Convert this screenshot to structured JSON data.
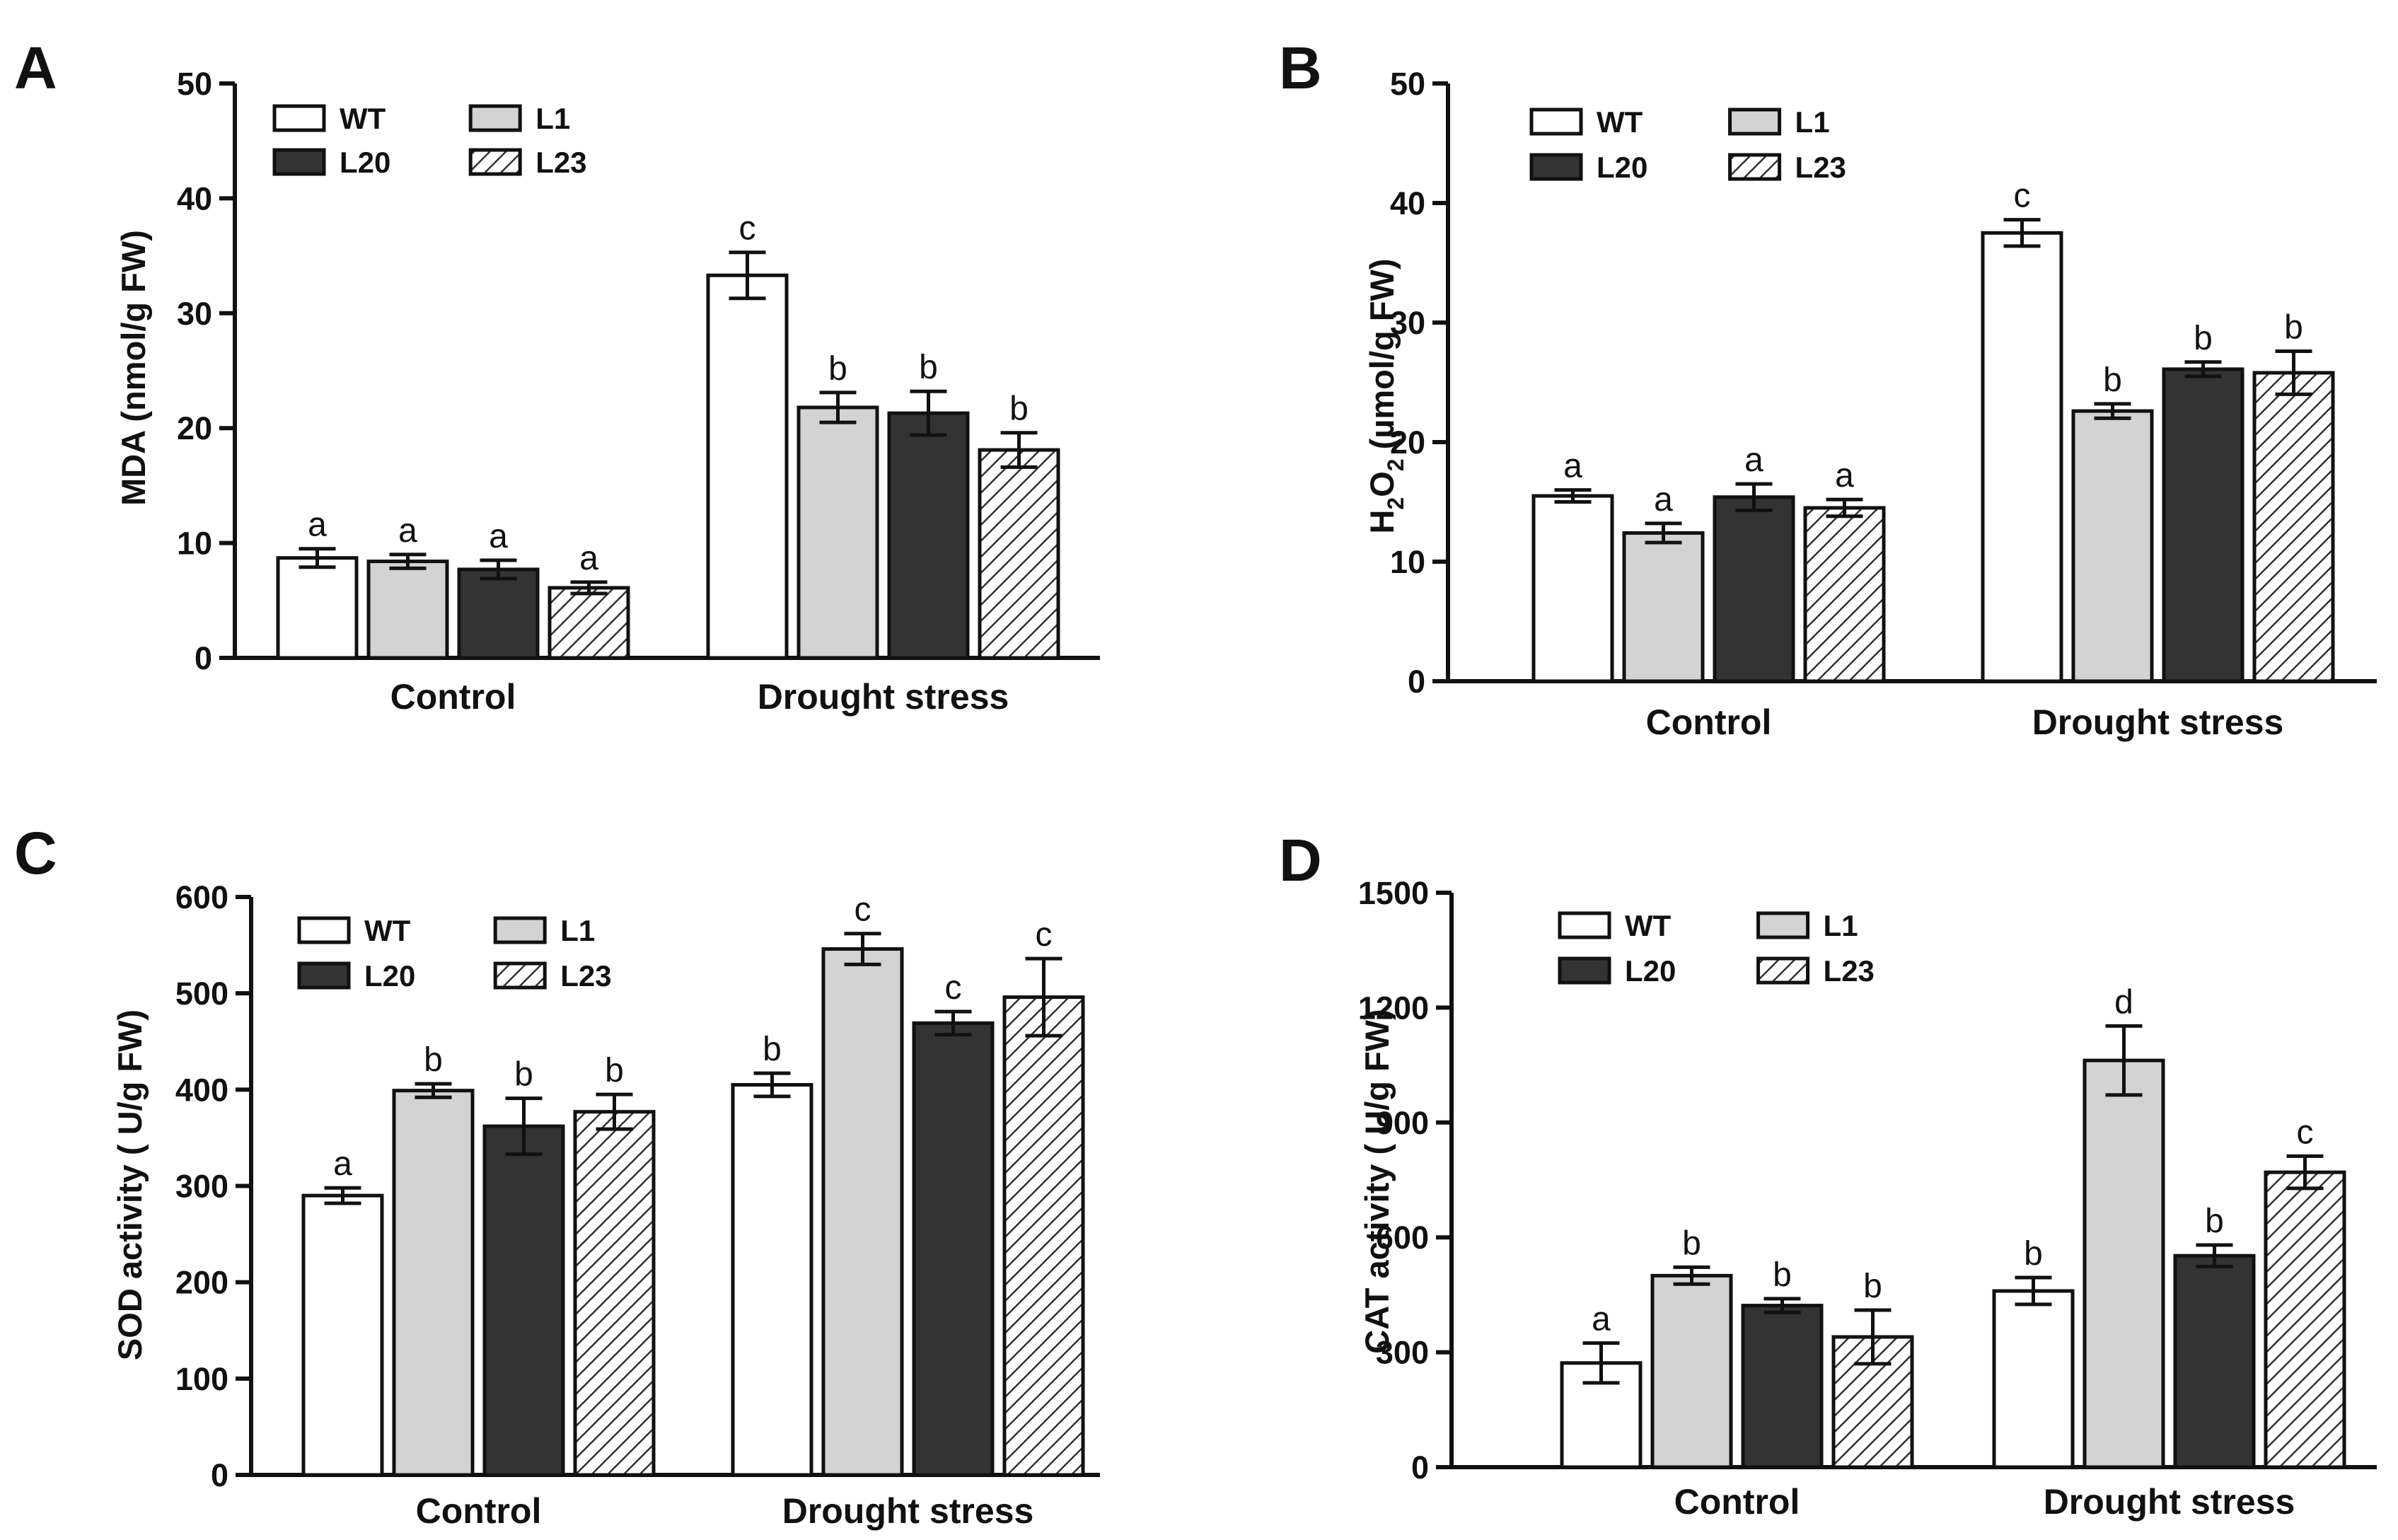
{
  "chart_data": [
    {
      "type": "bar",
      "panel": "A",
      "ylabel": "MDA (nmol/g FW)",
      "ylim": [
        0,
        50
      ],
      "yticks": [
        0,
        10,
        20,
        30,
        40,
        50
      ],
      "categories": [
        "Control",
        "Drought stress"
      ],
      "series": [
        {
          "name": "WT",
          "fill": "white",
          "values": [
            8.7,
            33.3
          ],
          "errors": [
            0.8,
            2.0
          ],
          "letters": [
            "a",
            "c"
          ]
        },
        {
          "name": "L1",
          "fill": "light",
          "values": [
            8.4,
            21.8
          ],
          "errors": [
            0.6,
            1.3
          ],
          "letters": [
            "a",
            "b"
          ]
        },
        {
          "name": "L20",
          "fill": "dark",
          "values": [
            7.7,
            21.3
          ],
          "errors": [
            0.8,
            1.9
          ],
          "letters": [
            "a",
            "b"
          ]
        },
        {
          "name": "L23",
          "fill": "hatch",
          "values": [
            6.1,
            18.1
          ],
          "errors": [
            0.5,
            1.5
          ],
          "letters": [
            "a",
            "b"
          ]
        }
      ]
    },
    {
      "type": "bar",
      "panel": "B",
      "ylabel": "H2O2 (µmol/g FW)",
      "ylabel_parts": {
        "pre": "H",
        "sub1": "2",
        "mid": "O",
        "sub2": "2",
        "post": " (µmol/g FW)"
      },
      "ylim": [
        0,
        50
      ],
      "yticks": [
        0,
        10,
        20,
        30,
        40,
        50
      ],
      "categories": [
        "Control",
        "Drought stress"
      ],
      "series": [
        {
          "name": "WT",
          "fill": "white",
          "values": [
            15.5,
            37.5
          ],
          "errors": [
            0.5,
            1.1
          ],
          "letters": [
            "a",
            "c"
          ]
        },
        {
          "name": "L1",
          "fill": "light",
          "values": [
            12.4,
            22.6
          ],
          "errors": [
            0.8,
            0.6
          ],
          "letters": [
            "a",
            "b"
          ]
        },
        {
          "name": "L20",
          "fill": "dark",
          "values": [
            15.4,
            26.1
          ],
          "errors": [
            1.1,
            0.6
          ],
          "letters": [
            "a",
            "b"
          ]
        },
        {
          "name": "L23",
          "fill": "hatch",
          "values": [
            14.5,
            25.8
          ],
          "errors": [
            0.7,
            1.8
          ],
          "letters": [
            "a",
            "b"
          ]
        }
      ]
    },
    {
      "type": "bar",
      "panel": "C",
      "ylabel": "SOD activity ( U/g FW)",
      "ylim": [
        0,
        600
      ],
      "yticks": [
        0,
        100,
        200,
        300,
        400,
        500,
        600
      ],
      "categories": [
        "Control",
        "Drought stress"
      ],
      "series": [
        {
          "name": "WT",
          "fill": "white",
          "values": [
            290,
            405
          ],
          "errors": [
            8,
            12
          ],
          "letters": [
            "a",
            "b"
          ]
        },
        {
          "name": "L1",
          "fill": "light",
          "values": [
            399,
            546
          ],
          "errors": [
            7,
            16
          ],
          "letters": [
            "b",
            "c"
          ]
        },
        {
          "name": "L20",
          "fill": "dark",
          "values": [
            362,
            469
          ],
          "errors": [
            29,
            12
          ],
          "letters": [
            "b",
            "c"
          ]
        },
        {
          "name": "L23",
          "fill": "hatch",
          "values": [
            377,
            496
          ],
          "errors": [
            18,
            40
          ],
          "letters": [
            "b",
            "c"
          ]
        }
      ]
    },
    {
      "type": "bar",
      "panel": "D",
      "ylabel": "CAT activity ( U/g FW)",
      "ylim": [
        0,
        1500
      ],
      "yticks": [
        0,
        300,
        600,
        900,
        1200,
        1500
      ],
      "categories": [
        "Control",
        "Drought stress"
      ],
      "series": [
        {
          "name": "WT",
          "fill": "white",
          "values": [
            272,
            460
          ],
          "errors": [
            52,
            35
          ],
          "letters": [
            "a",
            "b"
          ]
        },
        {
          "name": "L1",
          "fill": "light",
          "values": [
            500,
            1062
          ],
          "errors": [
            22,
            90
          ],
          "letters": [
            "b",
            "d"
          ]
        },
        {
          "name": "L20",
          "fill": "dark",
          "values": [
            422,
            552
          ],
          "errors": [
            18,
            28
          ],
          "letters": [
            "b",
            "b"
          ]
        },
        {
          "name": "L23",
          "fill": "hatch",
          "values": [
            340,
            770
          ],
          "errors": [
            70,
            42
          ],
          "letters": [
            "b",
            "c"
          ]
        }
      ]
    }
  ],
  "colors": {
    "white": "#ffffff",
    "light": "#d3d3d3",
    "dark": "#333333",
    "hatch_line": "#333333",
    "axis": "#111111"
  }
}
